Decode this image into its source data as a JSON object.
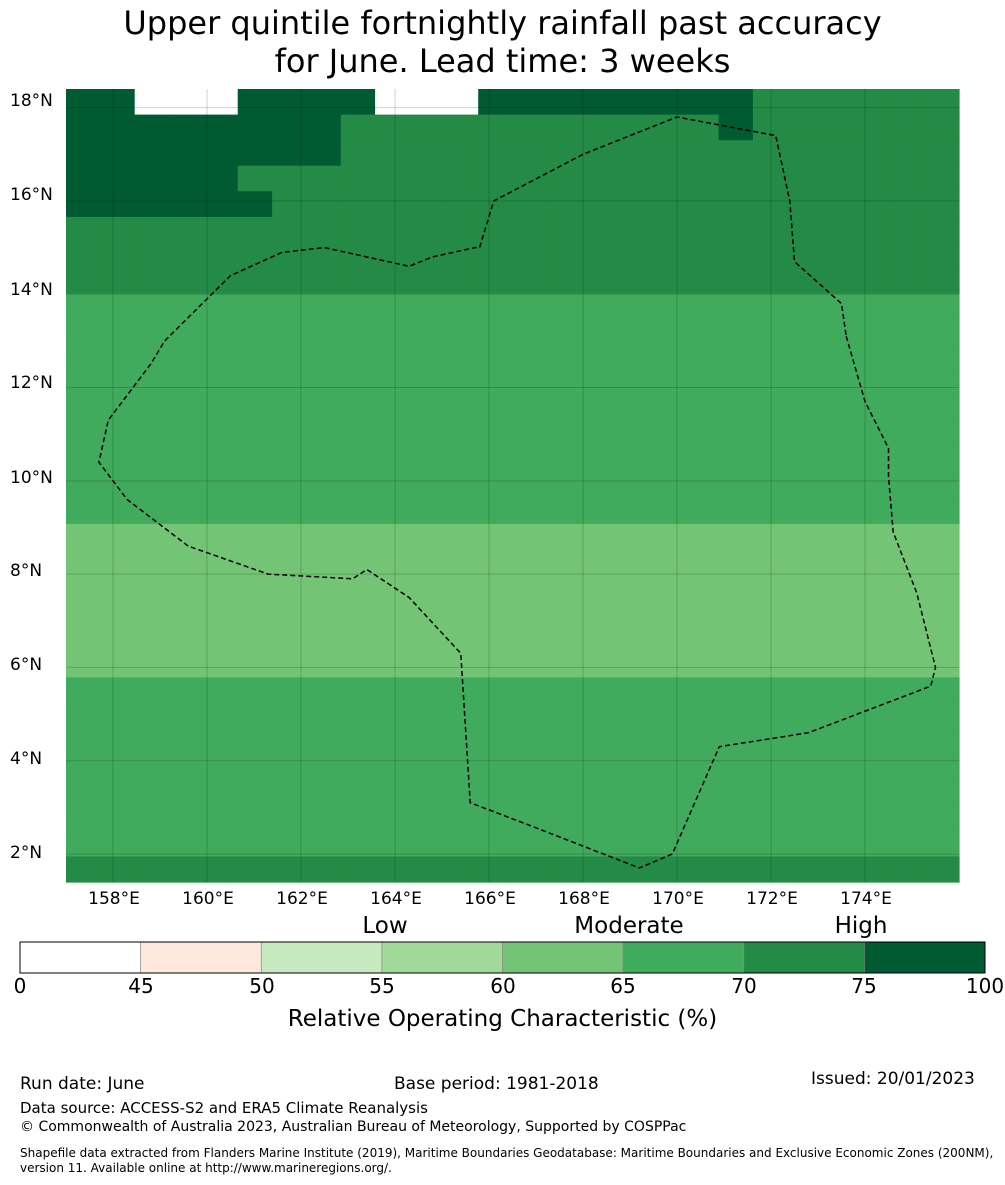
{
  "title": {
    "line1": "Upper quintile fortnightly rainfall past accuracy",
    "line2": "for June. Lead time: 3 weeks"
  },
  "map": {
    "lat_labels": [
      "18°N",
      "16°N",
      "14°N",
      "12°N",
      "10°N",
      "8°N",
      "6°N",
      "4°N",
      "2°N"
    ],
    "lon_labels": [
      "158°E",
      "160°E",
      "162°E",
      "164°E",
      "166°E",
      "168°E",
      "170°E",
      "172°E",
      "174°E"
    ],
    "lon_range": [
      157,
      176
    ],
    "lat_range": [
      1.4,
      18.4
    ],
    "grid_rows": [
      "77888777788877777777666666",
      "77777777666666666667666666",
      "77777777666666666666666666",
      "77777666666666666666666666",
      "77777766666666666666666666",
      "66666666666666666666666666",
      "66666666666666666666666666",
      "66666666666666666666666666",
      "55555555555555555555555555",
      "55555555555555555555555555",
      "55555555555555555555555555",
      "55555555555555555555555555",
      "55555555555555555555555555",
      "55555555555555555555555555",
      "55555555555555555555555555",
      "55555555555555555555555555",
      "55555555555555555555555555",
      "44444444444444444444444444",
      "44444444444444444444444444",
      "44444444444444444444444444",
      "44444444444444444444444444",
      "44444444444444444444444444",
      "44444444444444444444444444",
      "55555555555555555555555555",
      "55555555555555555555555555",
      "55555555555555555555555555",
      "55555555555555555555555555",
      "55555555555555555555555555",
      "55555555555555555555555555",
      "55555555555555555555555555",
      "66666666666666666666666666"
    ],
    "boundary_points": [
      [
        173.6,
        13.1
      ],
      [
        174.0,
        11.7
      ],
      [
        174.1,
        11.5
      ],
      [
        174.5,
        10.7
      ],
      [
        174.5,
        10.1
      ],
      [
        174.6,
        8.9
      ],
      [
        175.1,
        7.6
      ],
      [
        175.5,
        6.0
      ],
      [
        175.4,
        5.6
      ],
      [
        172.8,
        4.6
      ],
      [
        170.9,
        4.3
      ],
      [
        169.9,
        2.0
      ],
      [
        169.2,
        1.7
      ],
      [
        166.9,
        2.6
      ],
      [
        165.6,
        3.1
      ],
      [
        165.4,
        6.3
      ],
      [
        164.3,
        7.5
      ],
      [
        163.4,
        8.1
      ],
      [
        163.1,
        7.9
      ],
      [
        161.3,
        8.0
      ],
      [
        159.6,
        8.6
      ],
      [
        158.3,
        9.6
      ],
      [
        157.7,
        10.4
      ],
      [
        157.9,
        11.3
      ],
      [
        158.8,
        12.5
      ],
      [
        159.1,
        13.0
      ],
      [
        159.7,
        13.6
      ],
      [
        160.5,
        14.4
      ],
      [
        161.6,
        14.9
      ],
      [
        162.5,
        15.0
      ],
      [
        164.3,
        14.6
      ],
      [
        164.8,
        14.8
      ],
      [
        165.7,
        15.0
      ],
      [
        165.8,
        15.0
      ],
      [
        166.1,
        16.0
      ],
      [
        168.0,
        17.0
      ],
      [
        170.0,
        17.8
      ],
      [
        172.1,
        17.4
      ],
      [
        172.4,
        16.0
      ],
      [
        172.5,
        14.7
      ],
      [
        173.5,
        13.8
      ],
      [
        173.6,
        13.1
      ]
    ]
  },
  "colorbar": {
    "category_labels": [
      "Low",
      "Moderate",
      "High"
    ],
    "ticks": [
      "0",
      "45",
      "50",
      "55",
      "60",
      "65",
      "70",
      "75",
      "100"
    ],
    "colors": [
      "#ffffff",
      "#fee8dd",
      "#c7e9c0",
      "#a1d99b",
      "#74c476",
      "#41ab5d",
      "#238b45",
      "#005a32"
    ],
    "title": "Relative Operating Characteristic (%)"
  },
  "footer": {
    "run_date": "Run date: June",
    "base_period": "Base period: 1981-2018",
    "issued": "Issued: 20/01/2023",
    "data_source": "Data source: ACCESS-S2 and ERA5 Climate Reanalysis",
    "copyright": "© Commonwealth of Australia 2023, Australian Bureau of Meteorology, Supported by COSPPac",
    "shapefile": "Shapefile data extracted from Flanders Marine Institute (2019), Maritime Boundaries Geodatabase: Maritime Boundaries and Exclusive Economic Zones (200NM), version 11. Available online at http://www.marineregions.org/."
  }
}
